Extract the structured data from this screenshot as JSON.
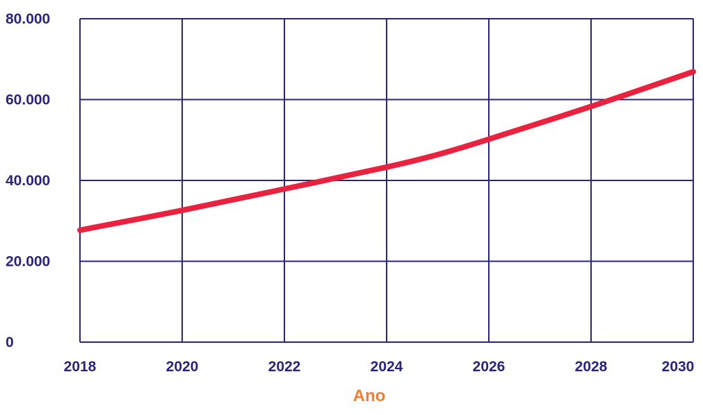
{
  "chart_data": {
    "type": "line",
    "title": "",
    "xlabel": "Ano",
    "ylabel": "",
    "x": [
      2018,
      2020,
      2022,
      2024,
      2025,
      2026,
      2028,
      2030
    ],
    "series": [
      {
        "values": [
          27700,
          32600,
          37900,
          43300,
          46400,
          50200,
          58300,
          66900
        ]
      }
    ],
    "xlim": [
      2018,
      2030
    ],
    "ylim": [
      0,
      80000
    ],
    "xticks": [
      "2018",
      "2020",
      "2022",
      "2024",
      "2026",
      "2028",
      "2030"
    ],
    "yticks": [
      "0",
      "20.000",
      "40.000",
      "60.000",
      "80.000"
    ],
    "grid": true,
    "legend": "none",
    "colors": {
      "line": "#e8223f",
      "grid": "#28257a",
      "ticks": "#28257a",
      "xlabel": "#f47b30"
    }
  }
}
